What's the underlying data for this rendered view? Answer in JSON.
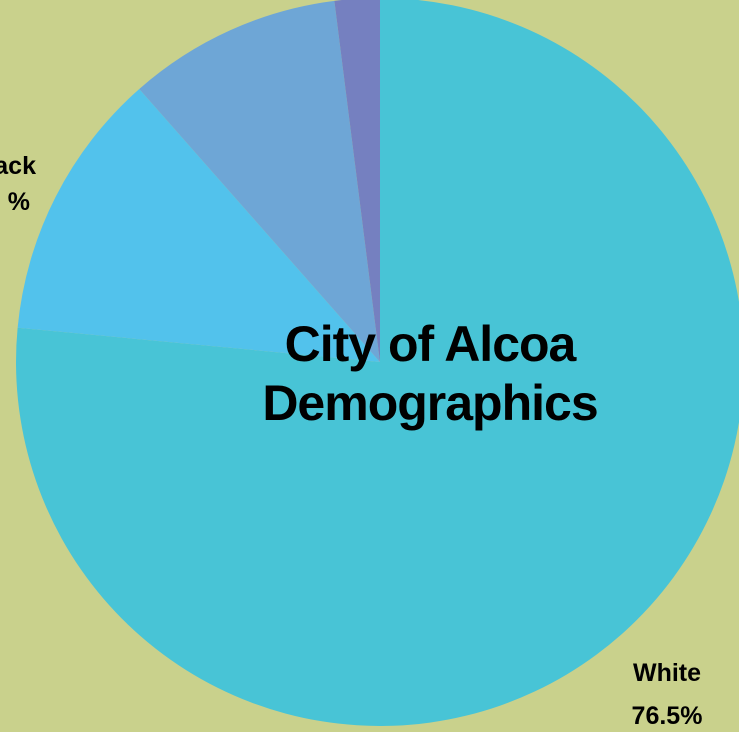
{
  "chart_data": {
    "type": "pie",
    "title": "City of Alcoa Demographics",
    "title_lines": [
      "City of Alcoa",
      "Demographics"
    ],
    "slices": [
      {
        "label": "White",
        "value": 76.5,
        "value_label": "76.5%",
        "color": "#48c4d6"
      },
      {
        "label": "Black",
        "value": 12.0,
        "value_label": "%",
        "color": "#52c2ec"
      },
      {
        "label": "",
        "value": 9.5,
        "value_label": "",
        "color": "#6ea6d6"
      },
      {
        "label": "",
        "value": 2.0,
        "value_label": "",
        "color": "#7580c0"
      }
    ],
    "background": "#c9d18c"
  }
}
